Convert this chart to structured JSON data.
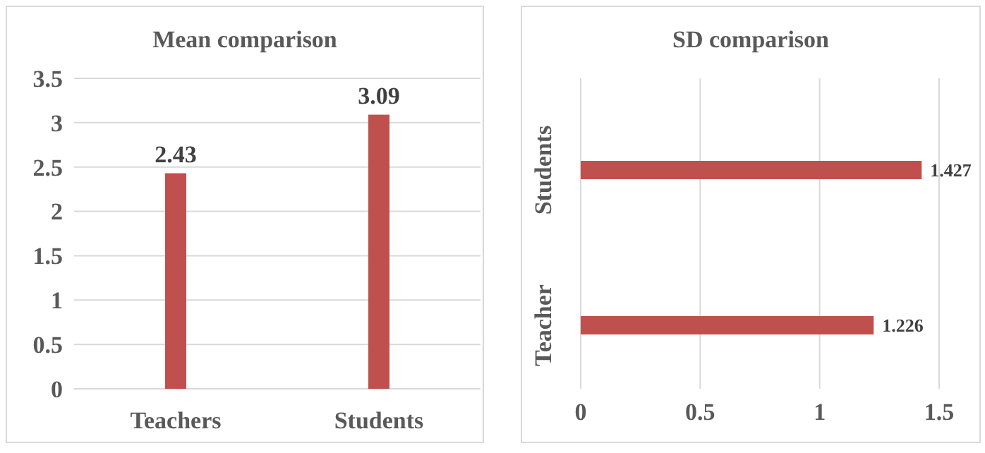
{
  "chart_data": [
    {
      "type": "bar",
      "title": "Mean comparison",
      "categories": [
        "Teachers",
        "Students"
      ],
      "values": [
        2.43,
        3.09
      ],
      "color": "#c0504d",
      "ylim": [
        0,
        3.5
      ],
      "yticks": [
        0,
        0.5,
        1,
        1.5,
        2,
        2.5,
        3,
        3.5
      ],
      "grid": "y",
      "data_labels": true
    },
    {
      "type": "bar",
      "title": "SD comparison",
      "orientation": "horizontal",
      "categories": [
        "Students",
        "Teacher"
      ],
      "values": [
        1.427,
        1.226
      ],
      "color": "#c0504d",
      "xlim": [
        0,
        1.5
      ],
      "xticks": [
        0,
        0.5,
        1,
        1.5
      ],
      "grid": "x",
      "data_labels": true
    }
  ]
}
